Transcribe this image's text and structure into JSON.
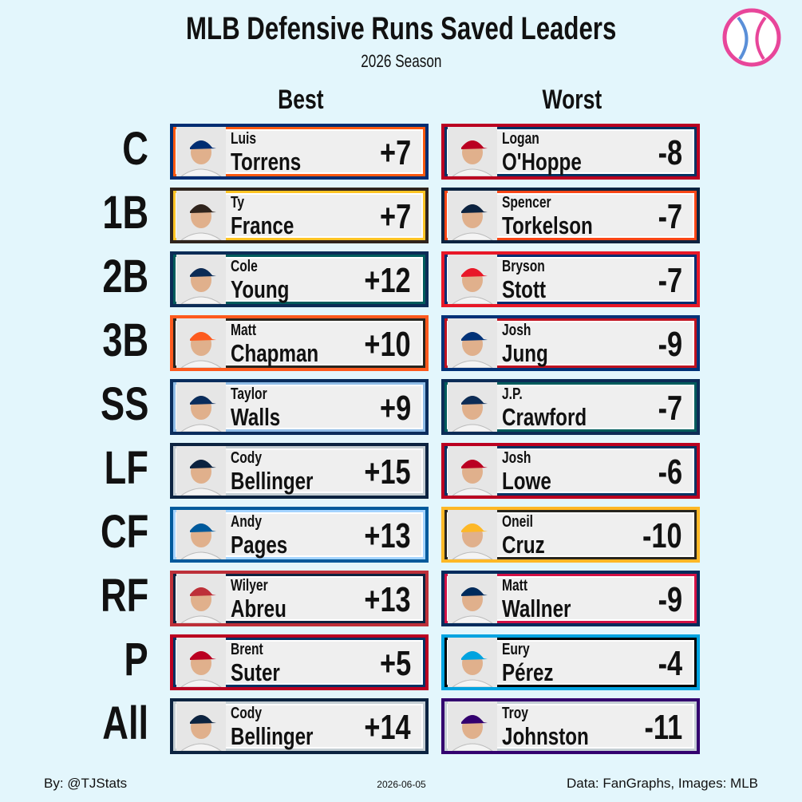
{
  "header": {
    "title": "MLB Defensive Runs Saved Leaders",
    "subtitle": "2026 Season"
  },
  "columns": [
    "Best",
    "Worst"
  ],
  "rows": [
    {
      "position": "C",
      "best": {
        "first": "Luis",
        "last": "Torrens",
        "value": "+7",
        "color": "#002d72",
        "accent": "#ff5910"
      },
      "worst": {
        "first": "Logan",
        "last": "O'Hoppe",
        "value": "-8",
        "color": "#ba0021",
        "accent": "#003263"
      }
    },
    {
      "position": "1B",
      "best": {
        "first": "Ty",
        "last": "France",
        "value": "+7",
        "color": "#2f241d",
        "accent": "#ffc425"
      },
      "worst": {
        "first": "Spencer",
        "last": "Torkelson",
        "value": "-7",
        "color": "#0c2340",
        "accent": "#fa4616"
      }
    },
    {
      "position": "2B",
      "best": {
        "first": "Cole",
        "last": "Young",
        "value": "+12",
        "color": "#0c2c56",
        "accent": "#005c5c"
      },
      "worst": {
        "first": "Bryson",
        "last": "Stott",
        "value": "-7",
        "color": "#e81828",
        "accent": "#002d72"
      }
    },
    {
      "position": "3B",
      "best": {
        "first": "Matt",
        "last": "Chapman",
        "value": "+10",
        "color": "#fd5a1e",
        "accent": "#27251f"
      },
      "worst": {
        "first": "Josh",
        "last": "Jung",
        "value": "-9",
        "color": "#003278",
        "accent": "#c0111f"
      }
    },
    {
      "position": "SS",
      "best": {
        "first": "Taylor",
        "last": "Walls",
        "value": "+9",
        "color": "#092c5c",
        "accent": "#8fbce6"
      },
      "worst": {
        "first": "J.P.",
        "last": "Crawford",
        "value": "-7",
        "color": "#0c2c56",
        "accent": "#005c5c"
      }
    },
    {
      "position": "LF",
      "best": {
        "first": "Cody",
        "last": "Bellinger",
        "value": "+15",
        "color": "#0c2340",
        "accent": "#c4ced3"
      },
      "worst": {
        "first": "Josh",
        "last": "Lowe",
        "value": "-6",
        "color": "#ba0021",
        "accent": "#003263"
      }
    },
    {
      "position": "CF",
      "best": {
        "first": "Andy",
        "last": "Pages",
        "value": "+13",
        "color": "#005a9c",
        "accent": "#a5d4ff"
      },
      "worst": {
        "first": "Oneil",
        "last": "Cruz",
        "value": "-10",
        "color": "#fdb827",
        "accent": "#27251f"
      }
    },
    {
      "position": "RF",
      "best": {
        "first": "Wilyer",
        "last": "Abreu",
        "value": "+13",
        "color": "#bd3039",
        "accent": "#0c2340"
      },
      "worst": {
        "first": "Matt",
        "last": "Wallner",
        "value": "-9",
        "color": "#002b5c",
        "accent": "#d31145"
      }
    },
    {
      "position": "P",
      "best": {
        "first": "Brent",
        "last": "Suter",
        "value": "+5",
        "color": "#ba0021",
        "accent": "#003263"
      },
      "worst": {
        "first": "Eury",
        "last": "Pérez",
        "value": "-4",
        "color": "#00a3e0",
        "accent": "#000000"
      }
    },
    {
      "position": "All",
      "best": {
        "first": "Cody",
        "last": "Bellinger",
        "value": "+14",
        "color": "#0c2340",
        "accent": "#c4ced3"
      },
      "worst": {
        "first": "Troy",
        "last": "Johnston",
        "value": "-11",
        "color": "#33006f",
        "accent": "#c4ced4"
      }
    }
  ],
  "footer": {
    "credit": "By: @TJStats",
    "date": "2026-06-05",
    "source": "Data: FanGraphs, Images: MLB"
  }
}
